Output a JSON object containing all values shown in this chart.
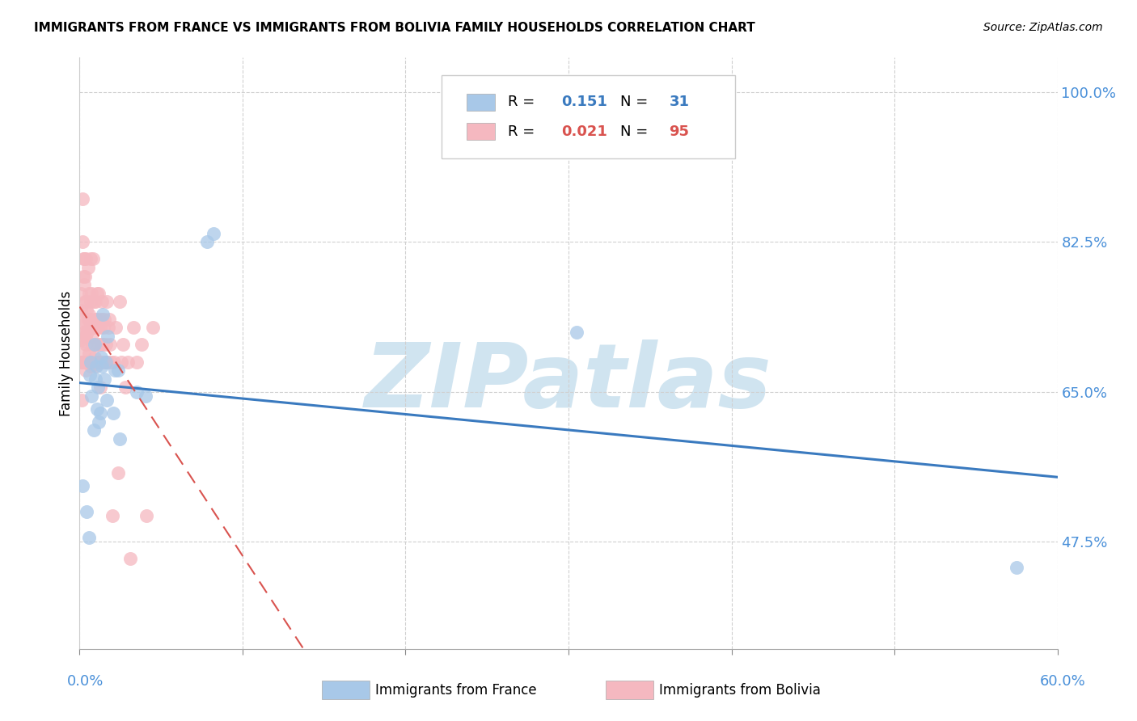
{
  "title": "IMMIGRANTS FROM FRANCE VS IMMIGRANTS FROM BOLIVIA FAMILY HOUSEHOLDS CORRELATION CHART",
  "source": "Source: ZipAtlas.com",
  "ylabel": "Family Households",
  "yticks": [
    47.5,
    65.0,
    82.5,
    100.0
  ],
  "ytick_labels": [
    "47.5%",
    "65.0%",
    "82.5%",
    "100.0%"
  ],
  "xlim": [
    0.0,
    60.0
  ],
  "ylim": [
    35.0,
    104.0
  ],
  "france_R": 0.151,
  "france_N": 31,
  "bolivia_R": 0.021,
  "bolivia_N": 95,
  "france_color": "#a8c8e8",
  "bolivia_color": "#f5b8c0",
  "france_line_color": "#3a7abf",
  "bolivia_line_color": "#d9534f",
  "watermark": "ZIPatlas",
  "watermark_color": "#d0e4f0",
  "legend_france_label": "Immigrants from France",
  "legend_bolivia_label": "Immigrants from Bolivia",
  "background_color": "#ffffff",
  "grid_color": "#d0d0d0",
  "tick_label_color": "#4a90d9",
  "france_x": [
    0.18,
    0.42,
    0.55,
    0.62,
    0.68,
    0.72,
    0.85,
    0.92,
    0.95,
    1.02,
    1.05,
    1.12,
    1.18,
    1.25,
    1.32,
    1.38,
    1.42,
    1.52,
    1.6,
    1.65,
    1.72,
    2.05,
    2.15,
    2.35,
    2.48,
    3.52,
    4.05,
    7.8,
    8.2,
    30.5,
    57.5
  ],
  "france_y": [
    54.0,
    51.0,
    48.0,
    67.0,
    68.5,
    64.5,
    60.5,
    70.5,
    66.5,
    68.0,
    63.0,
    65.5,
    61.5,
    62.5,
    69.0,
    68.0,
    74.0,
    66.5,
    68.5,
    64.0,
    71.5,
    62.5,
    67.5,
    67.5,
    59.5,
    65.0,
    64.5,
    82.5,
    83.5,
    72.0,
    44.5
  ],
  "bolivia_x": [
    0.05,
    0.08,
    0.1,
    0.1,
    0.12,
    0.15,
    0.18,
    0.18,
    0.2,
    0.22,
    0.22,
    0.25,
    0.25,
    0.28,
    0.28,
    0.3,
    0.3,
    0.32,
    0.32,
    0.35,
    0.35,
    0.38,
    0.38,
    0.4,
    0.4,
    0.42,
    0.45,
    0.45,
    0.48,
    0.5,
    0.52,
    0.52,
    0.55,
    0.55,
    0.58,
    0.6,
    0.62,
    0.65,
    0.65,
    0.68,
    0.7,
    0.72,
    0.75,
    0.78,
    0.8,
    0.82,
    0.85,
    0.88,
    0.9,
    0.92,
    0.95,
    0.95,
    0.98,
    1.0,
    1.02,
    1.05,
    1.08,
    1.1,
    1.12,
    1.15,
    1.18,
    1.2,
    1.25,
    1.28,
    1.3,
    1.32,
    1.35,
    1.38,
    1.4,
    1.42,
    1.48,
    1.52,
    1.55,
    1.6,
    1.65,
    1.7,
    1.75,
    1.8,
    1.85,
    1.9,
    2.0,
    2.1,
    2.2,
    2.35,
    2.45,
    2.55,
    2.65,
    2.8,
    2.95,
    3.1,
    3.3,
    3.5,
    3.8,
    4.1,
    4.5
  ],
  "bolivia_y": [
    71.0,
    74.5,
    68.5,
    76.5,
    64.0,
    73.5,
    82.5,
    87.5,
    68.5,
    72.0,
    78.5,
    71.0,
    80.5,
    77.5,
    69.5,
    73.0,
    80.5,
    68.5,
    75.5,
    72.0,
    78.5,
    71.5,
    67.5,
    80.5,
    70.5,
    74.5,
    68.5,
    75.5,
    72.0,
    68.5,
    73.5,
    79.5,
    74.0,
    69.5,
    76.5,
    72.5,
    73.5,
    80.5,
    68.0,
    75.5,
    71.5,
    76.5,
    70.5,
    72.5,
    80.5,
    68.5,
    72.5,
    75.5,
    69.0,
    73.5,
    72.5,
    68.0,
    75.5,
    73.5,
    68.5,
    70.5,
    76.5,
    72.5,
    68.5,
    70.5,
    76.5,
    73.5,
    65.5,
    72.5,
    68.5,
    70.5,
    75.5,
    73.5,
    70.5,
    68.5,
    72.5,
    73.5,
    68.5,
    70.5,
    75.5,
    68.5,
    72.5,
    73.5,
    70.5,
    68.5,
    50.5,
    68.5,
    72.5,
    55.5,
    75.5,
    68.5,
    70.5,
    65.5,
    68.5,
    45.5,
    72.5,
    68.5,
    70.5,
    50.5,
    72.5
  ]
}
